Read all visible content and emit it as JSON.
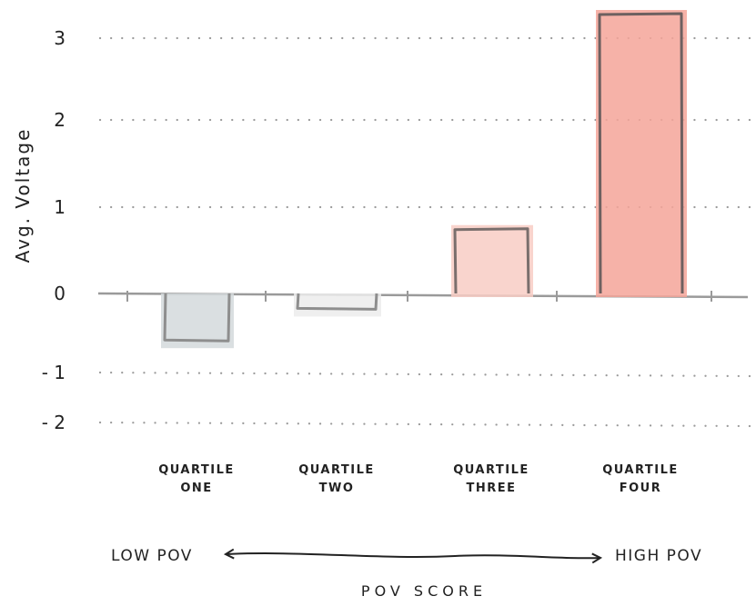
{
  "chart_data": {
    "type": "bar",
    "categories": [
      [
        "QUARTILE",
        "ONE"
      ],
      [
        "QUARTILE",
        "TWO"
      ],
      [
        "QUARTILE",
        "THREE"
      ],
      [
        "QUARTILE",
        "FOUR"
      ]
    ],
    "values": [
      -0.6,
      -0.2,
      0.75,
      3.3
    ],
    "ylabel": "Avg. Voltage",
    "xlabel": "POV SCORE",
    "y_ticks": [
      {
        "value": 3,
        "label": "3"
      },
      {
        "value": 2,
        "label": "2"
      },
      {
        "value": 1,
        "label": "1"
      },
      {
        "value": 0,
        "label": "0"
      },
      {
        "value": -1,
        "label": "- 1"
      },
      {
        "value": -2,
        "label": "- 2"
      }
    ],
    "ylim": [
      -2,
      3
    ],
    "grid": "dotted",
    "bar_colors": [
      "#d4d9dc",
      "#ececec",
      "#f8cdc4",
      "#f4a599"
    ],
    "bar_strokes": [
      "#8e8e8e",
      "#8e8e8e",
      "#7a6f6d",
      "#6e6060"
    ],
    "axis_note": {
      "low": "LOW POV",
      "high": "HIGH POV"
    }
  }
}
